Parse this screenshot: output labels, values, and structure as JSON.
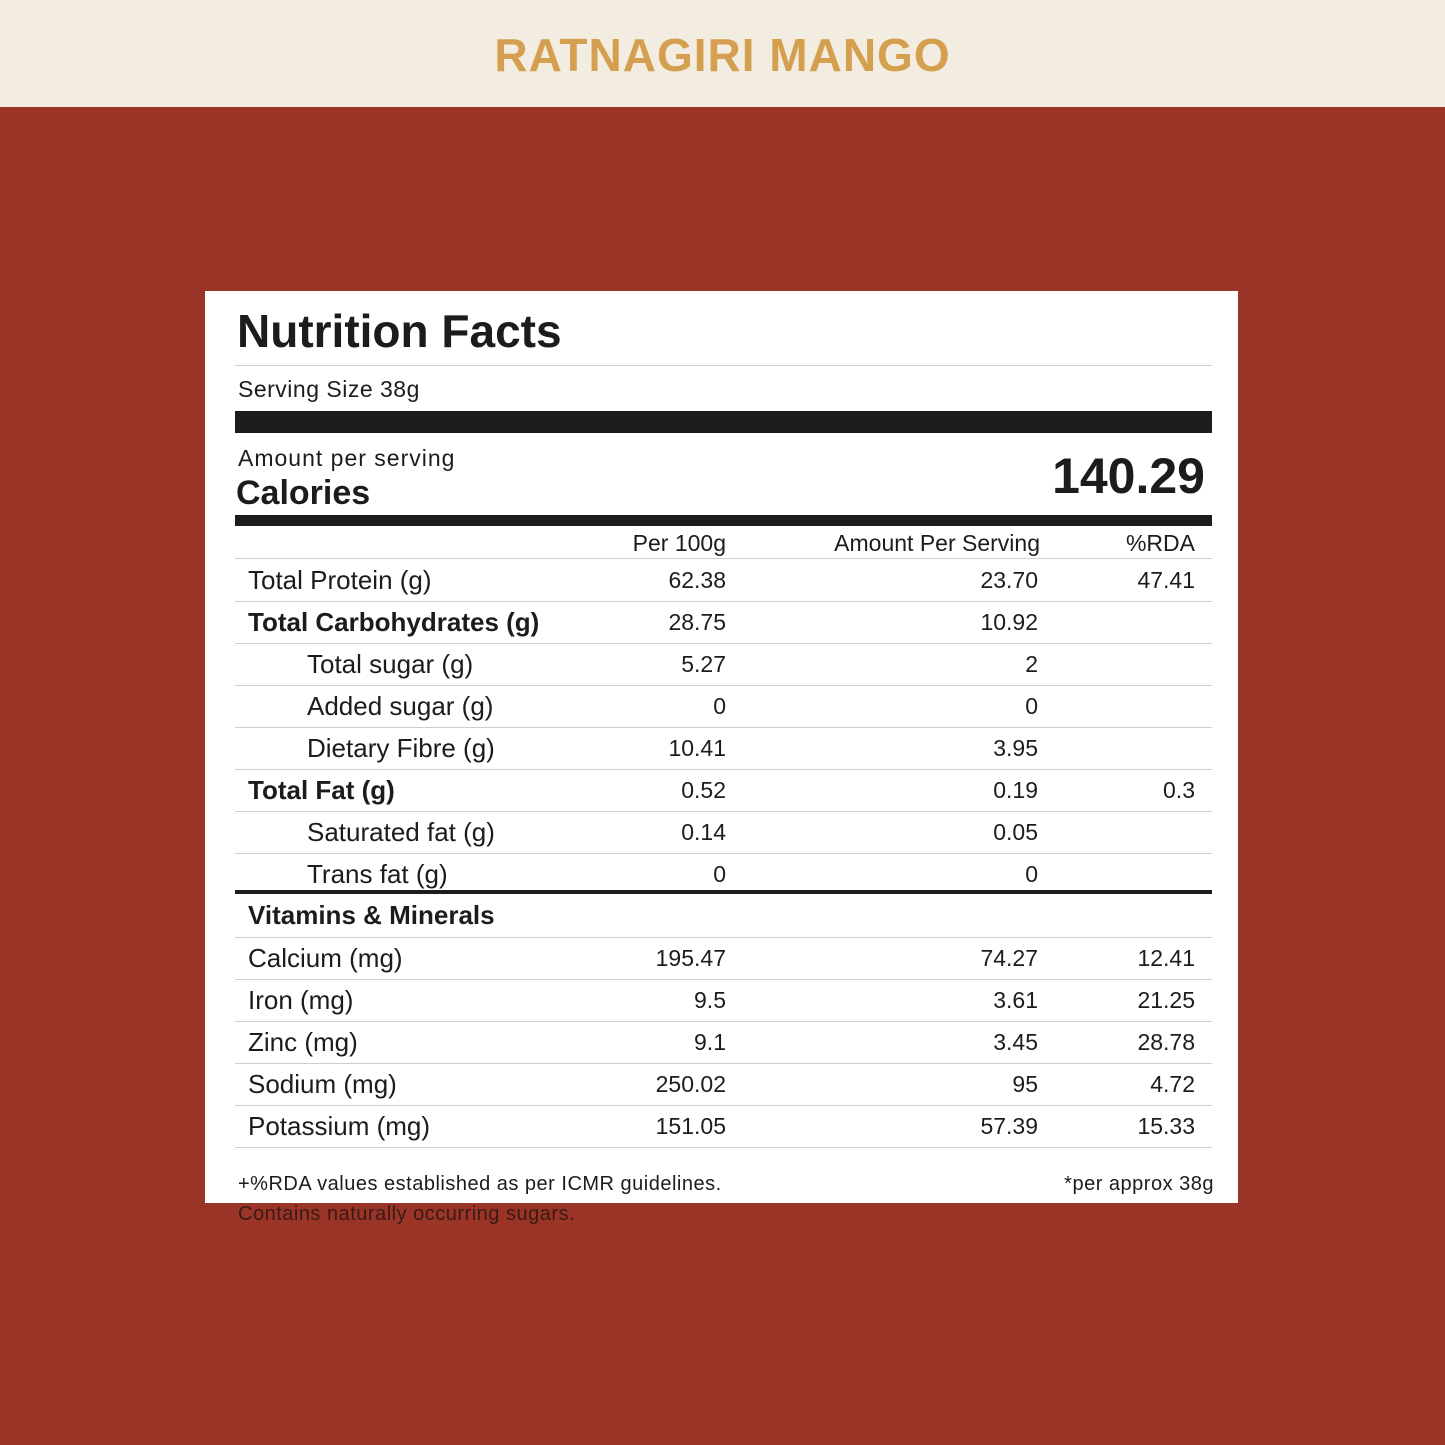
{
  "title": "RATNAGIRI MANGO",
  "label": {
    "heading": "Nutrition Facts",
    "serving_size": "Serving Size 38g",
    "amount_per_serving": "Amount per serving",
    "calories_label": "Calories",
    "calories": "140.29",
    "columns": [
      "Per 100g",
      "Amount Per Serving",
      "%RDA"
    ],
    "nutrients": [
      {
        "label": "Total Protein (g)",
        "per_100g": "62.38",
        "per_serving": "23.70",
        "rda": "47.41"
      },
      {
        "label": "Total Carbohydrates (g)",
        "per_100g": "28.75",
        "per_serving": "10.92",
        "components": [
          {
            "label": "Total sugar (g)",
            "per_100g": "5.27",
            "per_serving": "2"
          },
          {
            "label": "Added sugar (g)",
            "per_100g": "0",
            "per_serving": "0"
          },
          {
            "label": "Dietary Fibre (g)",
            "per_100g": "10.41",
            "per_serving": "3.95"
          }
        ]
      },
      {
        "label": "Total Fat (g)",
        "per_100g": "0.52",
        "per_serving": "0.19",
        "rda": "0.3",
        "components": [
          {
            "label": "Saturated fat (g)",
            "per_100g": "0.14",
            "per_serving": "0.05"
          },
          {
            "label": "Trans fat (g)",
            "per_100g": "0",
            "per_serving": "0"
          }
        ]
      }
    ],
    "vitamins_heading": "Vitamins & Minerals",
    "vitamins": [
      {
        "label": "Calcium (mg)",
        "per_100g": "195.47",
        "per_serving": "74.27",
        "rda": "12.41"
      },
      {
        "label": "Iron (mg)",
        "per_100g": "9.5",
        "per_serving": "3.61",
        "rda": "21.25"
      },
      {
        "label": "Zinc (mg)",
        "per_100g": "9.1",
        "per_serving": "3.45",
        "rda": "28.78"
      },
      {
        "label": "Sodium (mg)",
        "per_100g": "250.02",
        "per_serving": "95",
        "rda": "4.72"
      },
      {
        "label": "Potassium (mg)",
        "per_100g": "151.05",
        "per_serving": "57.39",
        "rda": "15.33"
      }
    ],
    "footnotes": [
      "+%RDA values established as per ICMR guidelines.",
      "Contains naturally occurring sugars."
    ],
    "serving_note": "*per approx 38g"
  }
}
